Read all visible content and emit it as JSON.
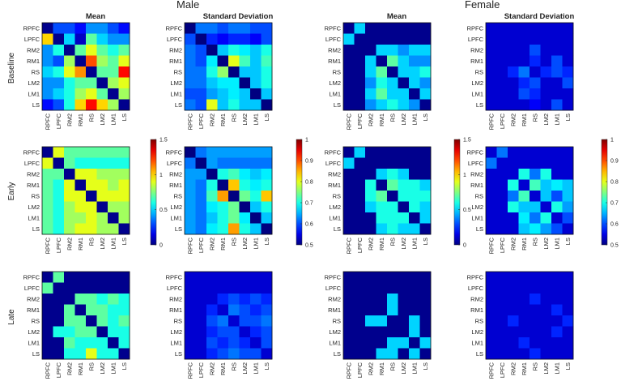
{
  "titles": {
    "male": "Male",
    "female": "Female",
    "mean": "Mean",
    "sd": "Standard Deviation",
    "baseline": "Baseline",
    "early": "Early",
    "late": "Late"
  },
  "colormap": "jet",
  "chart_data": [
    {
      "type": "heatmap",
      "group": "Male",
      "stat": "Mean",
      "phase": "Baseline",
      "vmin": 0,
      "vmax": 1.5,
      "labels": [
        "RPFC",
        "LPFC",
        "RM2",
        "RM1",
        "RS",
        "LM2",
        "LM1",
        "LS"
      ],
      "z": [
        [
          0.02,
          0.3,
          0.3,
          0.2,
          0.4,
          0.4,
          0.3,
          0.2
        ],
        [
          1.0,
          0.02,
          0.5,
          0.1,
          0.7,
          0.5,
          0.4,
          0.4
        ],
        [
          0.4,
          0.6,
          0.02,
          0.7,
          0.9,
          0.7,
          0.6,
          0.7
        ],
        [
          0.4,
          0.3,
          0.8,
          0.02,
          1.2,
          0.8,
          0.7,
          0.9
        ],
        [
          0.5,
          0.6,
          0.9,
          1.1,
          0.02,
          0.7,
          0.7,
          1.3
        ],
        [
          0.4,
          0.4,
          0.6,
          0.7,
          0.7,
          0.02,
          0.8,
          0.9
        ],
        [
          0.4,
          0.5,
          0.6,
          0.8,
          0.9,
          0.7,
          0.02,
          0.8
        ],
        [
          0.2,
          0.3,
          0.6,
          1.0,
          1.3,
          1.0,
          0.8,
          0.02
        ]
      ]
    },
    {
      "type": "heatmap",
      "group": "Male",
      "stat": "Standard Deviation",
      "phase": "Baseline",
      "vmin": 0.5,
      "vmax": 1,
      "labels": [
        "RPFC",
        "LPFC",
        "RM2",
        "RM1",
        "RS",
        "LM2",
        "LM1",
        "LS"
      ],
      "z": [
        [
          0.5,
          0.62,
          0.62,
          0.6,
          0.62,
          0.62,
          0.6,
          0.6
        ],
        [
          0.6,
          0.5,
          0.58,
          0.56,
          0.58,
          0.58,
          0.56,
          0.6
        ],
        [
          0.62,
          0.6,
          0.5,
          0.66,
          0.7,
          0.68,
          0.66,
          0.7
        ],
        [
          0.62,
          0.6,
          0.68,
          0.5,
          0.8,
          0.72,
          0.66,
          0.72
        ],
        [
          0.62,
          0.62,
          0.7,
          0.76,
          0.5,
          0.66,
          0.66,
          0.7
        ],
        [
          0.62,
          0.62,
          0.66,
          0.68,
          0.68,
          0.5,
          0.66,
          0.7
        ],
        [
          0.6,
          0.6,
          0.64,
          0.66,
          0.68,
          0.66,
          0.5,
          0.66
        ],
        [
          0.62,
          0.6,
          0.8,
          0.66,
          0.7,
          0.66,
          0.66,
          0.5
        ]
      ]
    },
    {
      "type": "heatmap",
      "group": "Female",
      "stat": "Mean",
      "phase": "Baseline",
      "vmin": 0,
      "vmax": 1.5,
      "labels": [
        "RPFC",
        "LPFC",
        "RM2",
        "RM1",
        "RS",
        "LM2",
        "LM1",
        "LS"
      ],
      "z": [
        [
          0.02,
          0.5,
          0.02,
          0.02,
          0.02,
          0.02,
          0.02,
          0.02
        ],
        [
          0.5,
          0.02,
          0.02,
          0.02,
          0.02,
          0.02,
          0.02,
          0.02
        ],
        [
          0.02,
          0.02,
          0.02,
          0.5,
          0.5,
          0.4,
          0.5,
          0.5
        ],
        [
          0.02,
          0.02,
          0.5,
          0.02,
          0.7,
          0.5,
          0.4,
          0.4
        ],
        [
          0.02,
          0.02,
          0.5,
          0.7,
          0.02,
          0.5,
          0.5,
          0.6
        ],
        [
          0.02,
          0.02,
          0.4,
          0.6,
          0.5,
          0.02,
          0.5,
          0.4
        ],
        [
          0.02,
          0.02,
          0.5,
          0.7,
          0.5,
          0.5,
          0.02,
          0.5
        ],
        [
          0.02,
          0.02,
          0.4,
          0.5,
          0.6,
          0.5,
          0.4,
          0.02
        ]
      ]
    },
    {
      "type": "heatmap",
      "group": "Female",
      "stat": "Standard Deviation",
      "phase": "Baseline",
      "vmin": 0.5,
      "vmax": 1,
      "labels": [
        "RPFC",
        "LPFC",
        "RM2",
        "RM1",
        "RS",
        "LM2",
        "LM1",
        "LS"
      ],
      "z": [
        [
          0.54,
          0.54,
          0.54,
          0.54,
          0.54,
          0.54,
          0.54,
          0.54
        ],
        [
          0.54,
          0.54,
          0.54,
          0.54,
          0.54,
          0.54,
          0.54,
          0.54
        ],
        [
          0.54,
          0.54,
          0.54,
          0.54,
          0.6,
          0.54,
          0.54,
          0.54
        ],
        [
          0.54,
          0.54,
          0.54,
          0.54,
          0.58,
          0.54,
          0.6,
          0.54
        ],
        [
          0.54,
          0.54,
          0.58,
          0.62,
          0.54,
          0.58,
          0.6,
          0.58
        ],
        [
          0.54,
          0.54,
          0.54,
          0.58,
          0.6,
          0.54,
          0.54,
          0.6
        ],
        [
          0.54,
          0.54,
          0.54,
          0.6,
          0.58,
          0.54,
          0.54,
          0.54
        ],
        [
          0.54,
          0.54,
          0.54,
          0.54,
          0.56,
          0.54,
          0.6,
          0.54
        ]
      ]
    },
    {
      "type": "heatmap",
      "group": "Male",
      "stat": "Mean",
      "phase": "Early",
      "vmin": 0,
      "vmax": 1.5,
      "labels": [
        "RPFC",
        "LPFC",
        "RM2",
        "RM1",
        "RS",
        "LM2",
        "LM1",
        "LS"
      ],
      "z": [
        [
          0.02,
          0.9,
          0.7,
          0.7,
          0.7,
          0.7,
          0.7,
          0.7
        ],
        [
          0.9,
          0.02,
          0.7,
          0.6,
          0.6,
          0.6,
          0.6,
          0.6
        ],
        [
          0.7,
          0.7,
          0.02,
          0.9,
          0.9,
          0.8,
          0.8,
          0.8
        ],
        [
          0.7,
          0.6,
          0.9,
          0.02,
          0.9,
          0.9,
          0.8,
          0.9
        ],
        [
          0.7,
          0.6,
          0.9,
          0.9,
          0.02,
          0.9,
          0.9,
          0.9
        ],
        [
          0.7,
          0.6,
          0.8,
          0.9,
          0.9,
          0.02,
          0.8,
          0.8
        ],
        [
          0.7,
          0.6,
          0.8,
          0.8,
          0.9,
          0.8,
          0.02,
          0.8
        ],
        [
          0.7,
          0.6,
          0.8,
          0.9,
          0.9,
          0.8,
          0.8,
          0.02
        ]
      ]
    },
    {
      "type": "heatmap",
      "group": "Male",
      "stat": "Standard Deviation",
      "phase": "Early",
      "vmin": 0.5,
      "vmax": 1,
      "labels": [
        "RPFC",
        "LPFC",
        "RM2",
        "RM1",
        "RS",
        "LM2",
        "LM1",
        "LS"
      ],
      "z": [
        [
          0.5,
          0.62,
          0.64,
          0.64,
          0.64,
          0.64,
          0.64,
          0.64
        ],
        [
          0.62,
          0.5,
          0.64,
          0.62,
          0.62,
          0.62,
          0.62,
          0.62
        ],
        [
          0.64,
          0.64,
          0.5,
          0.7,
          0.72,
          0.68,
          0.66,
          0.68
        ],
        [
          0.64,
          0.62,
          0.7,
          0.5,
          0.84,
          0.7,
          0.68,
          0.7
        ],
        [
          0.64,
          0.62,
          0.72,
          0.86,
          0.5,
          0.74,
          0.7,
          0.84
        ],
        [
          0.64,
          0.62,
          0.68,
          0.7,
          0.74,
          0.5,
          0.66,
          0.7
        ],
        [
          0.64,
          0.62,
          0.66,
          0.7,
          0.74,
          0.68,
          0.5,
          0.66
        ],
        [
          0.64,
          0.62,
          0.68,
          0.7,
          0.86,
          0.7,
          0.66,
          0.5
        ]
      ]
    },
    {
      "type": "heatmap",
      "group": "Female",
      "stat": "Mean",
      "phase": "Early",
      "vmin": 0,
      "vmax": 1.5,
      "labels": [
        "RPFC",
        "LPFC",
        "RM2",
        "RM1",
        "RS",
        "LM2",
        "LM1",
        "LS"
      ],
      "z": [
        [
          0.02,
          0.5,
          0.02,
          0.02,
          0.02,
          0.02,
          0.02,
          0.02
        ],
        [
          0.5,
          0.02,
          0.02,
          0.02,
          0.02,
          0.02,
          0.02,
          0.02
        ],
        [
          0.02,
          0.02,
          0.02,
          0.5,
          0.6,
          0.5,
          0.02,
          0.02
        ],
        [
          0.02,
          0.02,
          0.6,
          0.02,
          0.7,
          0.6,
          0.6,
          0.5
        ],
        [
          0.02,
          0.02,
          0.6,
          0.7,
          0.02,
          0.6,
          0.6,
          0.6
        ],
        [
          0.02,
          0.02,
          0.5,
          0.6,
          0.6,
          0.02,
          0.6,
          0.5
        ],
        [
          0.02,
          0.02,
          0.02,
          0.6,
          0.6,
          0.6,
          0.02,
          0.5
        ],
        [
          0.02,
          0.02,
          0.02,
          0.5,
          0.6,
          0.5,
          0.5,
          0.02
        ]
      ]
    },
    {
      "type": "heatmap",
      "group": "Female",
      "stat": "Standard Deviation",
      "phase": "Early",
      "vmin": 0.5,
      "vmax": 1,
      "labels": [
        "RPFC",
        "LPFC",
        "RM2",
        "RM1",
        "RS",
        "LM2",
        "LM1",
        "LS"
      ],
      "z": [
        [
          0.54,
          0.62,
          0.54,
          0.54,
          0.54,
          0.54,
          0.54,
          0.54
        ],
        [
          0.62,
          0.54,
          0.54,
          0.54,
          0.54,
          0.54,
          0.54,
          0.54
        ],
        [
          0.54,
          0.54,
          0.54,
          0.7,
          0.62,
          0.7,
          0.54,
          0.54
        ],
        [
          0.54,
          0.54,
          0.7,
          0.54,
          0.72,
          0.66,
          0.68,
          0.66
        ],
        [
          0.54,
          0.54,
          0.62,
          0.72,
          0.54,
          0.66,
          0.6,
          0.66
        ],
        [
          0.54,
          0.54,
          0.7,
          0.66,
          0.66,
          0.54,
          0.7,
          0.64
        ],
        [
          0.54,
          0.54,
          0.54,
          0.68,
          0.62,
          0.7,
          0.54,
          0.6
        ],
        [
          0.54,
          0.54,
          0.54,
          0.66,
          0.68,
          0.64,
          0.6,
          0.54
        ]
      ]
    },
    {
      "type": "heatmap",
      "group": "Male",
      "stat": "Mean",
      "phase": "Late",
      "vmin": 0,
      "vmax": 1.5,
      "labels": [
        "RPFC",
        "LPFC",
        "RM2",
        "RM1",
        "RS",
        "LM2",
        "LM1",
        "LS"
      ],
      "z": [
        [
          0.02,
          0.7,
          0.02,
          0.02,
          0.02,
          0.02,
          0.02,
          0.02
        ],
        [
          0.7,
          0.02,
          0.02,
          0.02,
          0.02,
          0.02,
          0.02,
          0.02
        ],
        [
          0.02,
          0.02,
          0.02,
          0.7,
          0.7,
          0.6,
          0.7,
          0.6
        ],
        [
          0.02,
          0.02,
          0.7,
          0.02,
          0.7,
          0.7,
          0.6,
          0.6
        ],
        [
          0.02,
          0.02,
          0.7,
          0.7,
          0.02,
          0.7,
          0.6,
          0.7
        ],
        [
          0.02,
          0.6,
          0.6,
          0.7,
          0.7,
          0.02,
          0.6,
          0.6
        ],
        [
          0.02,
          0.02,
          0.7,
          0.6,
          0.6,
          0.6,
          0.02,
          0.6
        ],
        [
          0.02,
          0.02,
          0.6,
          0.6,
          0.9,
          0.6,
          0.6,
          0.02
        ]
      ]
    },
    {
      "type": "heatmap",
      "group": "Male",
      "stat": "Standard Deviation",
      "phase": "Late",
      "vmin": 0.5,
      "vmax": 1,
      "labels": [
        "RPFC",
        "LPFC",
        "RM2",
        "RM1",
        "RS",
        "LM2",
        "LM1",
        "LS"
      ],
      "z": [
        [
          0.54,
          0.54,
          0.54,
          0.54,
          0.54,
          0.54,
          0.54,
          0.54
        ],
        [
          0.54,
          0.54,
          0.54,
          0.54,
          0.54,
          0.54,
          0.54,
          0.54
        ],
        [
          0.54,
          0.54,
          0.54,
          0.58,
          0.6,
          0.58,
          0.6,
          0.58
        ],
        [
          0.54,
          0.54,
          0.58,
          0.54,
          0.62,
          0.6,
          0.58,
          0.6
        ],
        [
          0.54,
          0.54,
          0.6,
          0.62,
          0.54,
          0.6,
          0.6,
          0.62
        ],
        [
          0.54,
          0.54,
          0.58,
          0.6,
          0.6,
          0.54,
          0.58,
          0.6
        ],
        [
          0.54,
          0.54,
          0.6,
          0.58,
          0.6,
          0.58,
          0.54,
          0.6
        ],
        [
          0.54,
          0.54,
          0.58,
          0.6,
          0.62,
          0.6,
          0.6,
          0.54
        ]
      ]
    },
    {
      "type": "heatmap",
      "group": "Female",
      "stat": "Mean",
      "phase": "Late",
      "vmin": 0,
      "vmax": 1.5,
      "labels": [
        "RPFC",
        "LPFC",
        "RM2",
        "RM1",
        "RS",
        "LM2",
        "LM1",
        "LS"
      ],
      "z": [
        [
          0.02,
          0.02,
          0.02,
          0.02,
          0.02,
          0.02,
          0.02,
          0.02
        ],
        [
          0.02,
          0.02,
          0.02,
          0.02,
          0.02,
          0.02,
          0.02,
          0.02
        ],
        [
          0.02,
          0.02,
          0.02,
          0.02,
          0.5,
          0.02,
          0.02,
          0.02
        ],
        [
          0.02,
          0.02,
          0.02,
          0.02,
          0.5,
          0.02,
          0.02,
          0.02
        ],
        [
          0.02,
          0.02,
          0.5,
          0.5,
          0.02,
          0.02,
          0.5,
          0.02
        ],
        [
          0.02,
          0.02,
          0.02,
          0.02,
          0.02,
          0.02,
          0.5,
          0.02
        ],
        [
          0.02,
          0.02,
          0.02,
          0.02,
          0.5,
          0.5,
          0.02,
          0.5
        ],
        [
          0.02,
          0.02,
          0.02,
          0.5,
          0.5,
          0.02,
          0.5,
          0.02
        ]
      ]
    },
    {
      "type": "heatmap",
      "group": "Female",
      "stat": "Standard Deviation",
      "phase": "Late",
      "vmin": 0.5,
      "vmax": 1,
      "labels": [
        "RPFC",
        "LPFC",
        "RM2",
        "RM1",
        "RS",
        "LM2",
        "LM1",
        "LS"
      ],
      "z": [
        [
          0.54,
          0.54,
          0.54,
          0.54,
          0.54,
          0.54,
          0.54,
          0.54
        ],
        [
          0.54,
          0.54,
          0.54,
          0.54,
          0.54,
          0.54,
          0.54,
          0.54
        ],
        [
          0.54,
          0.54,
          0.54,
          0.54,
          0.58,
          0.54,
          0.54,
          0.54
        ],
        [
          0.54,
          0.54,
          0.54,
          0.54,
          0.54,
          0.54,
          0.58,
          0.54
        ],
        [
          0.54,
          0.54,
          0.58,
          0.54,
          0.54,
          0.54,
          0.54,
          0.58
        ],
        [
          0.54,
          0.54,
          0.54,
          0.54,
          0.54,
          0.54,
          0.58,
          0.54
        ],
        [
          0.54,
          0.54,
          0.54,
          0.58,
          0.54,
          0.54,
          0.54,
          0.54
        ],
        [
          0.54,
          0.54,
          0.54,
          0.54,
          0.58,
          0.54,
          0.54,
          0.54
        ]
      ]
    }
  ],
  "colorbars": [
    {
      "vmin": 0,
      "vmax": 1.5,
      "ticks": [
        "0",
        "0.5",
        "1",
        "1.5"
      ]
    },
    {
      "vmin": 0.5,
      "vmax": 1,
      "ticks": [
        "0.5",
        "0.6",
        "0.7",
        "0.8",
        "0.9",
        "1"
      ]
    },
    {
      "vmin": 0,
      "vmax": 1.5,
      "ticks": [
        "0",
        "0.5",
        "1",
        "1.5"
      ]
    },
    {
      "vmin": 0.5,
      "vmax": 1,
      "ticks": [
        "0.5",
        "0.6",
        "0.7",
        "0.8",
        "0.9",
        "1"
      ]
    }
  ]
}
